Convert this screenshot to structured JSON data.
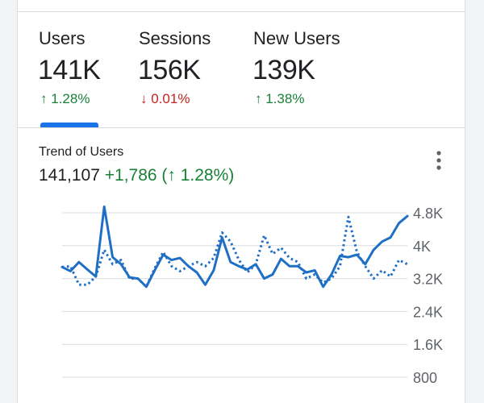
{
  "metrics": [
    {
      "label": "Users",
      "value": "141K",
      "change_arrow": "↑",
      "change_text": "1.28%",
      "direction": "up"
    },
    {
      "label": "Sessions",
      "value": "156K",
      "change_arrow": "↓",
      "change_text": "0.01%",
      "direction": "down"
    },
    {
      "label": "New Users",
      "value": "139K",
      "change_arrow": "↑",
      "change_text": "1.38%",
      "direction": "up"
    }
  ],
  "active_metric": "Users",
  "trend": {
    "title": "Trend of Users",
    "total": "141,107",
    "delta": "+1,786 (↑ 1.28%)",
    "more_icon": "more-vert-icon"
  },
  "colors": {
    "accent": "#1a73e8",
    "positive": "#188038",
    "negative": "#c5221f",
    "series_line": "#1f6fc4"
  },
  "chart_data": {
    "type": "line",
    "title": "",
    "xlabel": "",
    "ylabel": "",
    "y_ticks": [
      800,
      1600,
      2400,
      3200,
      4000,
      4800
    ],
    "y_tick_labels": [
      "800",
      "1.6K",
      "2.4K",
      "3.2K",
      "4K",
      "4.8K"
    ],
    "ylim": [
      800,
      4800
    ],
    "axis_position": "right",
    "grid": true,
    "series": [
      {
        "style": "solid",
        "values": [
          3480,
          3380,
          3600,
          3420,
          3250,
          4950,
          3720,
          3550,
          3230,
          3200,
          3000,
          3400,
          3780,
          3650,
          3700,
          3500,
          3350,
          3050,
          3400,
          4200,
          3600,
          3500,
          3420,
          3550,
          3200,
          3300,
          3680,
          3500,
          3500,
          3350,
          3400,
          3000,
          3300,
          3750,
          3720,
          3780,
          3550,
          3900,
          4100,
          4200,
          4550,
          4720
        ]
      },
      {
        "style": "dotted",
        "values": [
          3480,
          3500,
          3050,
          3050,
          3250,
          3900,
          3550,
          3650,
          3200,
          3200,
          3000,
          3450,
          3850,
          3500,
          3380,
          3500,
          3600,
          3500,
          3700,
          4320,
          4100,
          3650,
          3350,
          3550,
          4250,
          3800,
          3950,
          3700,
          3600,
          3200,
          3300,
          3100,
          3200,
          3500,
          4700,
          3850,
          3500,
          3200,
          3400,
          3250,
          3650,
          3550
        ]
      }
    ]
  }
}
